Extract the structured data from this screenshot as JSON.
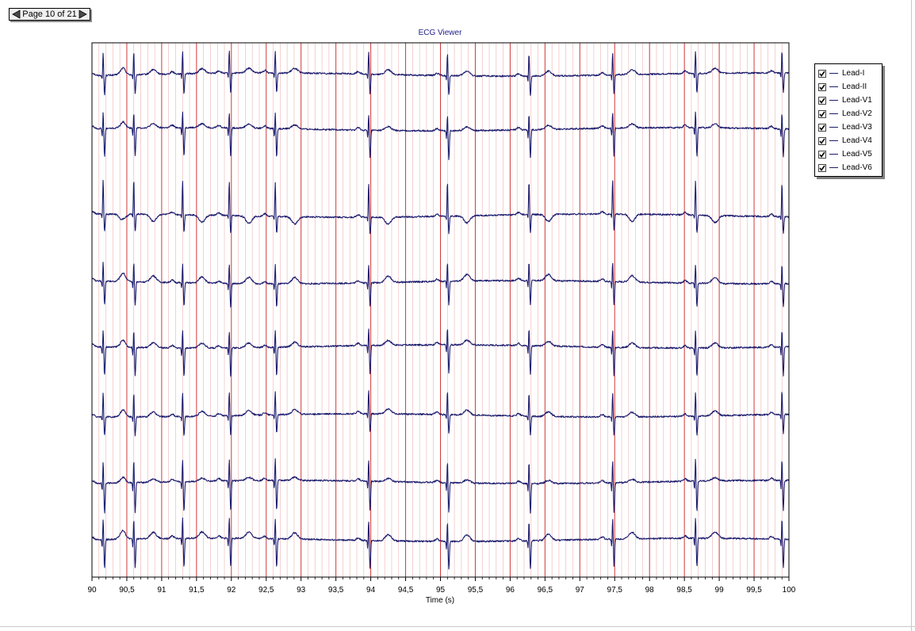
{
  "pager": {
    "label": "Page 10 of 21"
  },
  "chart_data": {
    "type": "line",
    "title": "ECG Viewer",
    "xlabel": "Time (s)",
    "ylabel": "",
    "xlim": [
      90,
      100
    ],
    "x_ticks": [
      "90",
      "90,5",
      "91",
      "91,5",
      "92",
      "92,5",
      "93",
      "93,5",
      "94",
      "94,5",
      "95",
      "95,5",
      "96",
      "96,5",
      "97",
      "97,5",
      "98",
      "98,5",
      "99",
      "99,5",
      "100"
    ],
    "grid": {
      "major_interval_s": 0.5,
      "minor_interval_s": 0.1,
      "color": "#cc2222"
    },
    "trace_color": "#1c1c6e",
    "beat_times_s": [
      90.16,
      90.6,
      91.3,
      91.97,
      92.63,
      93.97,
      95.1,
      96.27,
      97.47,
      98.66,
      99.9
    ],
    "legend_position": "top-right outside",
    "series": [
      {
        "name": "Lead-I"
      },
      {
        "name": "Lead-II"
      },
      {
        "name": "Lead-V1"
      },
      {
        "name": "Lead-V2"
      },
      {
        "name": "Lead-V3"
      },
      {
        "name": "Lead-V4"
      },
      {
        "name": "Lead-V5"
      },
      {
        "name": "Lead-V6"
      }
    ]
  }
}
